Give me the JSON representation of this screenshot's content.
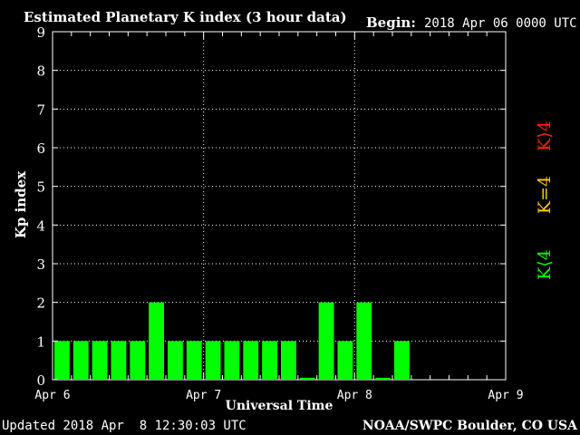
{
  "header": {
    "title": "Estimated Planetary K index (3 hour data)",
    "begin_label": "Begin:",
    "begin_value": "2018 Apr 06 0000 UTC"
  },
  "footer": {
    "updated": "Updated 2018 Apr  8 12:30:03 UTC",
    "source": "NOAA/SWPC Boulder, CO USA"
  },
  "legend": {
    "items": [
      {
        "label": "K⟨4",
        "color": "#00ff00"
      },
      {
        "label": "K=4",
        "color": "#ffcc00"
      },
      {
        "label": "K⟩4",
        "color": "#ff2000"
      }
    ]
  },
  "chart_data": {
    "type": "bar",
    "title": "Estimated Planetary K index (3 hour data)",
    "xlabel": "Universal Time",
    "ylabel": "Kp index",
    "ylim": [
      0,
      9
    ],
    "yticks": [
      0,
      1,
      2,
      3,
      4,
      5,
      6,
      7,
      8,
      9
    ],
    "x_tick_labels": [
      "Apr 6",
      "Apr 7",
      "Apr 8",
      "Apr 9"
    ],
    "bins_per_day": 8,
    "days": 3,
    "grid": true,
    "bar_color": "#00ff00",
    "values": [
      1,
      1,
      1,
      1,
      1,
      2,
      1,
      1,
      1,
      1,
      1,
      1,
      1,
      0.05,
      2,
      1,
      2,
      0.05,
      1
    ]
  }
}
